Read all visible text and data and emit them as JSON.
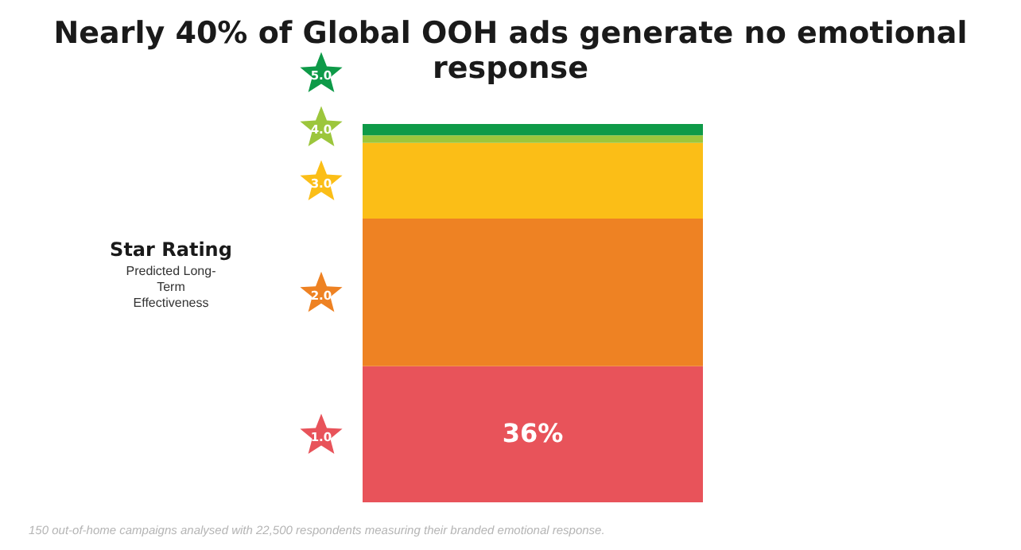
{
  "chart_data": {
    "type": "bar",
    "title": "Nearly 40% of Global OOH ads generate no emotional response",
    "legend_title": "Star Rating",
    "annotations": [
      "Predicted Long-Term Effectiveness",
      "150 out-of-home campaigns analysed with 22,500 respondents measuring their branded emotional response."
    ],
    "categories": [
      null
    ],
    "stacked": true,
    "legend": false,
    "series": [
      {
        "name": "1.0",
        "color": "#e8535a",
        "values": [
          36
        ],
        "value_labels": [
          "36%"
        ]
      },
      {
        "name": "2.0",
        "color": "#ee8223",
        "values": [
          39
        ]
      },
      {
        "name": "3.0",
        "color": "#fbbe17",
        "values": [
          20
        ]
      },
      {
        "name": "4.0",
        "color": "#9cc63c",
        "values": [
          2
        ]
      },
      {
        "name": "5.0",
        "color": "#0e9a48",
        "values": [
          3
        ]
      }
    ]
  }
}
